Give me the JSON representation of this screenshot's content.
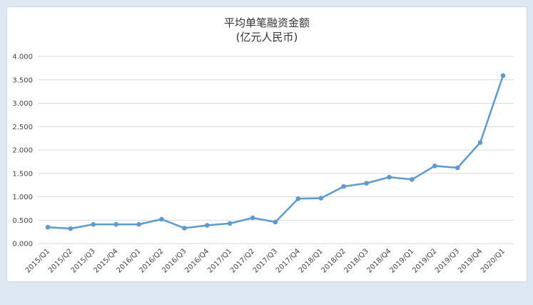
{
  "chart_data": {
    "type": "line",
    "title": "平均单笔融资金额",
    "subtitle": "(亿元人民币)",
    "categories": [
      "2015/Q1",
      "2015/Q2",
      "2015/Q3",
      "2015/Q4",
      "2016/Q1",
      "2016/Q2",
      "2016/Q3",
      "2016/Q4",
      "2017/Q1",
      "2017/Q2",
      "2017/Q3",
      "2017/Q4",
      "2018/Q1",
      "2018/Q2",
      "2018/Q3",
      "2018/Q4",
      "2019/Q1",
      "2019/Q2",
      "2019/Q3",
      "2019/Q4",
      "2020/Q1"
    ],
    "series": [
      {
        "values": [
          0.35,
          0.32,
          0.41,
          0.41,
          0.41,
          0.52,
          0.33,
          0.39,
          0.43,
          0.55,
          0.46,
          0.96,
          0.97,
          1.22,
          1.29,
          1.42,
          1.37,
          1.66,
          1.62,
          2.16,
          3.59
        ]
      }
    ],
    "ylim": [
      0,
      4
    ],
    "yticks": [
      "0.000",
      "0.500",
      "1.000",
      "1.500",
      "2.000",
      "2.500",
      "3.000",
      "3.500",
      "4.000"
    ],
    "grid": true,
    "legend": "none",
    "colors": {
      "line": "#5b9bd5",
      "grid": "#d9d9d9",
      "background": "#ffffff",
      "page": "#dde8f3"
    }
  }
}
